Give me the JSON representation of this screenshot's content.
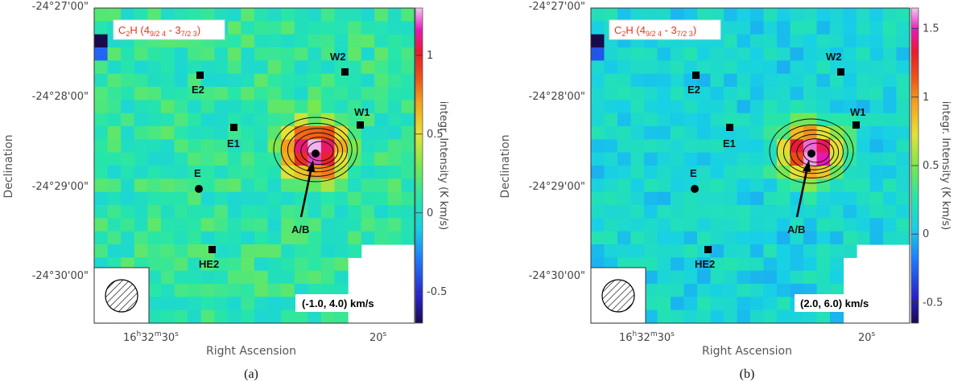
{
  "figure": {
    "panels": [
      {
        "caption": "(a)",
        "velocity_label": "(-1.0, 4.0) km/s",
        "cbar_ticks": [
          "1",
          "0.5",
          "0",
          "-0.5"
        ],
        "cbar_tick_values": [
          1,
          0.5,
          0,
          -0.5
        ],
        "cbar_range": [
          -0.7,
          1.3
        ]
      },
      {
        "caption": "(b)",
        "velocity_label": "(2.0, 6.0) km/s",
        "cbar_ticks": [
          "1.5",
          "1",
          "0.5",
          "0",
          "-0.5"
        ],
        "cbar_tick_values": [
          1.5,
          1,
          0.5,
          0,
          -0.5
        ],
        "cbar_range": [
          -0.65,
          1.65
        ]
      }
    ],
    "molecule_label": {
      "main": "C",
      "sub1": "2",
      "mid": "H (4",
      "sub2": "9/2 4",
      "dash": " - 3",
      "sub3": "7/2 3",
      "close": ")"
    },
    "dec_ticks": [
      "-24°27'00\"",
      "-24°28'00\"",
      "-24°29'00\"",
      "-24°30'00\""
    ],
    "ra_ticks": {
      "t1_h": "16",
      "t1_hs": "h",
      "t1_m": "32",
      "t1_ms": "m",
      "t1_s": "30",
      "t1_ss": "s",
      "t2_s": "20",
      "t2_ss": "s"
    },
    "xlabel": "Right Ascension",
    "ylabel": "Declination",
    "cbar_label": "integr. Intensity (K km/s)",
    "sources": [
      "E2",
      "W2",
      "W1",
      "E1",
      "E",
      "A/B",
      "HE2"
    ]
  },
  "chart_data": [
    {
      "type": "heatmap",
      "title": "C2H (4 9/2 4 - 3 7/2 3)",
      "xlabel": "Right Ascension",
      "ylabel": "Declination",
      "velocity_range_kms": [
        -1.0,
        4.0
      ],
      "colorbar_range": [
        -0.7,
        1.3
      ],
      "colorbar_ticks": [
        -0.5,
        0,
        0.5,
        1
      ],
      "peak_intensity": 1.3,
      "background_intensity": 0.1,
      "sources": [
        "E2",
        "W2",
        "W1",
        "E1",
        "E",
        "A/B",
        "HE2"
      ]
    },
    {
      "type": "heatmap",
      "title": "C2H (4 9/2 4 - 3 7/2 3)",
      "xlabel": "Right Ascension",
      "ylabel": "Declination",
      "velocity_range_kms": [
        2.0,
        6.0
      ],
      "colorbar_range": [
        -0.65,
        1.65
      ],
      "colorbar_ticks": [
        -0.5,
        0,
        0.5,
        1,
        1.5
      ],
      "peak_intensity": 1.6,
      "background_intensity": 0.1,
      "sources": [
        "E2",
        "W2",
        "W1",
        "E1",
        "E",
        "A/B",
        "HE2"
      ]
    }
  ]
}
